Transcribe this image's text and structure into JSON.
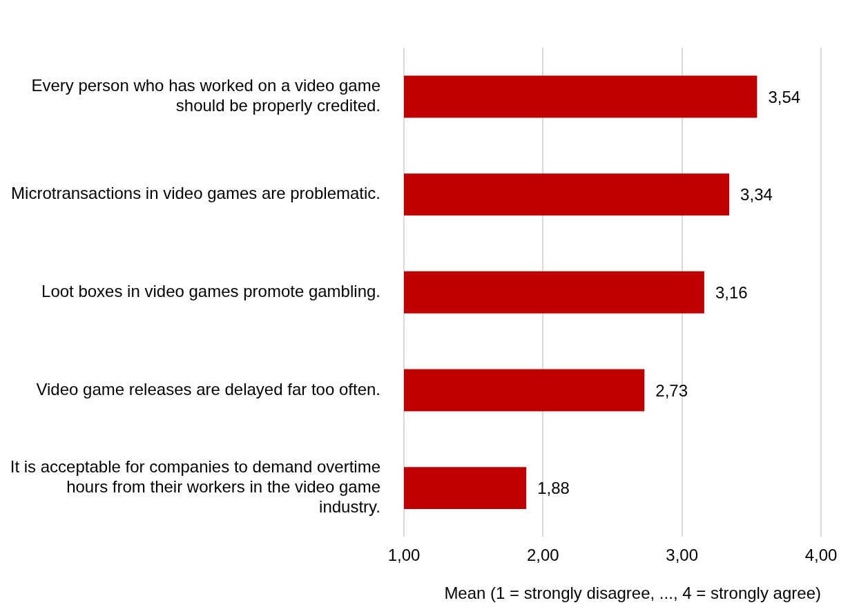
{
  "chart_data": {
    "type": "bar",
    "orientation": "horizontal",
    "categories": [
      "Every person who has worked on a video game should be properly credited.",
      "Microtransactions in video games are problematic.",
      "Loot boxes in video games promote gambling.",
      "Video game releases are delayed far too often.",
      "It is acceptable for companies to demand overtime hours from their workers in the video game industry."
    ],
    "values": [
      3.54,
      3.34,
      3.16,
      2.73,
      1.88
    ],
    "value_labels": [
      "3,54",
      "3,34",
      "3,16",
      "2,73",
      "1,88"
    ],
    "color": "#c00000",
    "xlim": [
      1,
      4
    ],
    "xticks": [
      {
        "value": 1,
        "label": "1,00"
      },
      {
        "value": 2,
        "label": "2,00"
      },
      {
        "value": 3,
        "label": "3,00"
      },
      {
        "value": 4,
        "label": "4,00"
      }
    ],
    "xlabel": "Mean (1 = strongly disagree, ..., 4 = strongly agree)",
    "grid": "x",
    "legend": false
  }
}
